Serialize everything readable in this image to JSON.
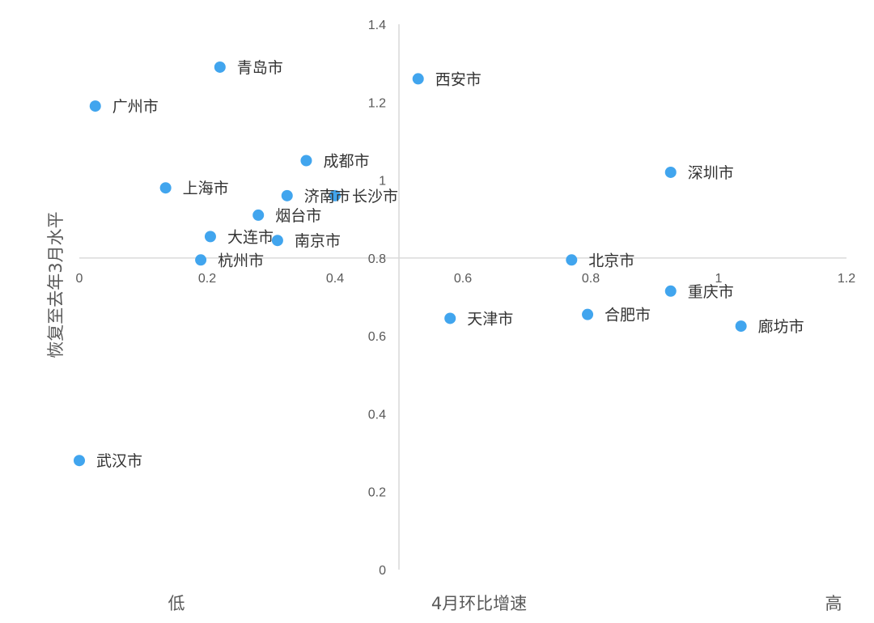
{
  "chart_data": {
    "type": "scatter",
    "xlabel": "4月环比增速",
    "ylabel": "恢复至去年3月水平",
    "x_low_label": "低",
    "x_high_label": "高",
    "xlim": [
      0,
      1.2
    ],
    "ylim": [
      0,
      1.4
    ],
    "x_ticks": [
      "0",
      "0.2",
      "0.4",
      "0.6",
      "0.8",
      "1",
      "1.2"
    ],
    "y_ticks": [
      "0",
      "0.2",
      "0.4",
      "0.6",
      "0.8",
      "1",
      "1.2",
      "1.4"
    ],
    "x_axis_crosses_y_at": 0.8,
    "y_axis_crosses_x_at": 0.5,
    "grid": false,
    "legend": "none",
    "marker_color": "#41A5EE",
    "points": [
      {
        "name": "青岛市",
        "x": 0.22,
        "y": 1.29
      },
      {
        "name": "广州市",
        "x": 0.025,
        "y": 1.19
      },
      {
        "name": "西安市",
        "x": 0.53,
        "y": 1.26
      },
      {
        "name": "成都市",
        "x": 0.355,
        "y": 1.05
      },
      {
        "name": "上海市",
        "x": 0.135,
        "y": 0.98
      },
      {
        "name": "济南市",
        "x": 0.325,
        "y": 0.96
      },
      {
        "name": "长沙市",
        "x": 0.4,
        "y": 0.96
      },
      {
        "name": "烟台市",
        "x": 0.28,
        "y": 0.91
      },
      {
        "name": "大连市",
        "x": 0.205,
        "y": 0.855
      },
      {
        "name": "南京市",
        "x": 0.31,
        "y": 0.845
      },
      {
        "name": "杭州市",
        "x": 0.19,
        "y": 0.795
      },
      {
        "name": "深圳市",
        "x": 0.925,
        "y": 1.02
      },
      {
        "name": "北京市",
        "x": 0.77,
        "y": 0.795
      },
      {
        "name": "重庆市",
        "x": 0.925,
        "y": 0.715
      },
      {
        "name": "天津市",
        "x": 0.58,
        "y": 0.645
      },
      {
        "name": "合肥市",
        "x": 0.795,
        "y": 0.655
      },
      {
        "name": "廊坊市",
        "x": 1.035,
        "y": 0.625
      },
      {
        "name": "武汉市",
        "x": 0.0,
        "y": 0.28
      }
    ]
  }
}
